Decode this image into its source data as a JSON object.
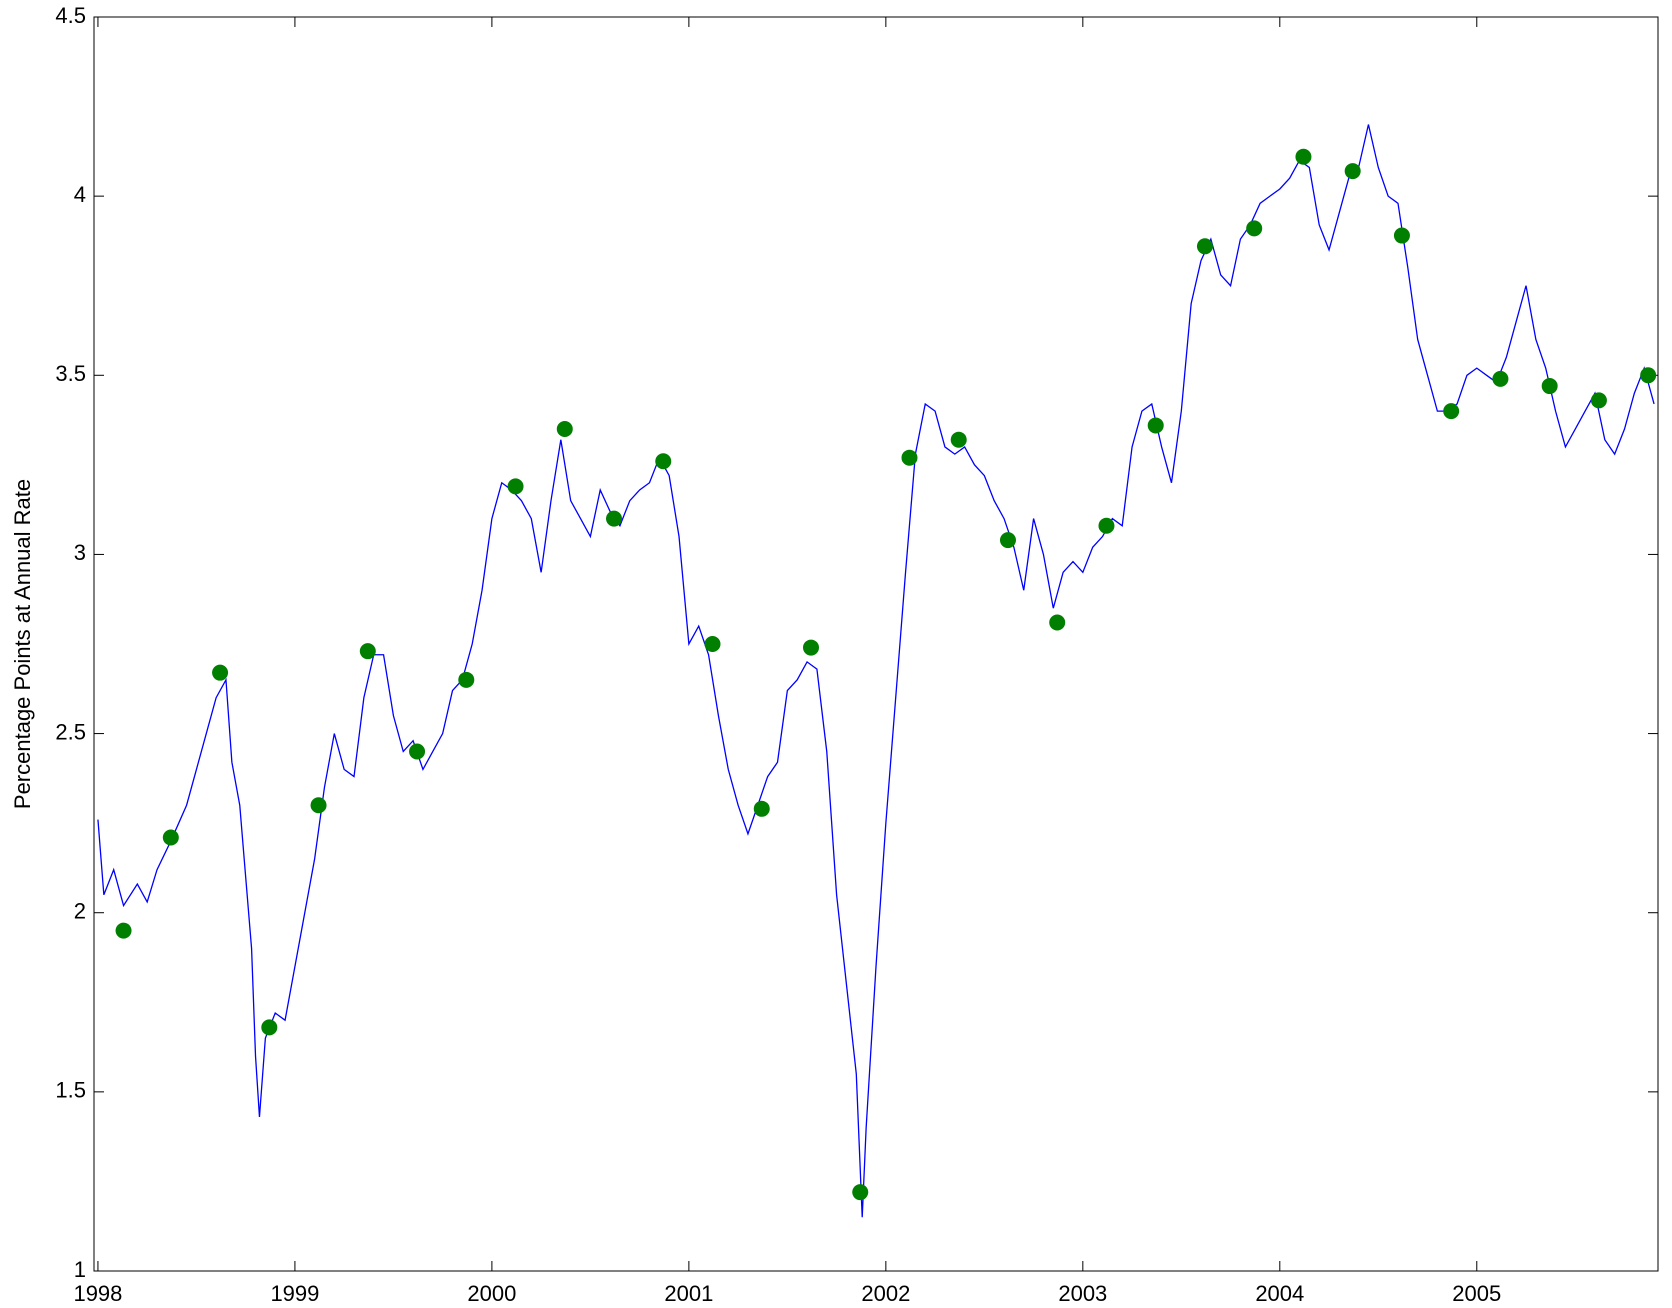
{
  "chart_data": {
    "type": "line",
    "ylabel": "Percentage Points at Annual Rate",
    "xlim": [
      1997.98,
      2005.92
    ],
    "xticks": [
      1998,
      1999,
      2000,
      2001,
      2002,
      2003,
      2004,
      2005
    ],
    "ylim": [
      1,
      4.5
    ],
    "yticks": [
      1,
      1.5,
      2,
      2.5,
      3,
      3.5,
      4,
      4.5
    ],
    "grid": false,
    "series": [
      {
        "type": "line",
        "color": "#0000ff",
        "x": [
          1998.0,
          1998.03,
          1998.08,
          1998.13,
          1998.2,
          1998.25,
          1998.3,
          1998.37,
          1998.45,
          1998.5,
          1998.55,
          1998.6,
          1998.65,
          1998.68,
          1998.72,
          1998.75,
          1998.78,
          1998.8,
          1998.82,
          1998.85,
          1998.9,
          1998.95,
          1999.0,
          1999.05,
          1999.1,
          1999.15,
          1999.2,
          1999.25,
          1999.3,
          1999.35,
          1999.4,
          1999.45,
          1999.5,
          1999.55,
          1999.6,
          1999.65,
          1999.7,
          1999.75,
          1999.8,
          1999.85,
          1999.9,
          1999.95,
          2000.0,
          2000.05,
          2000.1,
          2000.15,
          2000.2,
          2000.25,
          2000.3,
          2000.35,
          2000.4,
          2000.45,
          2000.5,
          2000.55,
          2000.6,
          2000.65,
          2000.7,
          2000.75,
          2000.8,
          2000.85,
          2000.9,
          2000.95,
          2001.0,
          2001.05,
          2001.1,
          2001.15,
          2001.2,
          2001.25,
          2001.3,
          2001.35,
          2001.4,
          2001.45,
          2001.5,
          2001.55,
          2001.6,
          2001.65,
          2001.7,
          2001.75,
          2001.8,
          2001.85,
          2001.88,
          2001.9,
          2001.95,
          2002.0,
          2002.05,
          2002.1,
          2002.15,
          2002.2,
          2002.25,
          2002.3,
          2002.35,
          2002.4,
          2002.45,
          2002.5,
          2002.55,
          2002.6,
          2002.65,
          2002.7,
          2002.75,
          2002.8,
          2002.85,
          2002.9,
          2002.95,
          2003.0,
          2003.05,
          2003.1,
          2003.15,
          2003.2,
          2003.25,
          2003.3,
          2003.35,
          2003.4,
          2003.45,
          2003.5,
          2003.55,
          2003.6,
          2003.65,
          2003.7,
          2003.75,
          2003.8,
          2003.85,
          2003.9,
          2003.95,
          2004.0,
          2004.05,
          2004.1,
          2004.15,
          2004.2,
          2004.25,
          2004.3,
          2004.35,
          2004.4,
          2004.45,
          2004.5,
          2004.55,
          2004.6,
          2004.65,
          2004.7,
          2004.75,
          2004.8,
          2004.85,
          2004.9,
          2004.95,
          2005.0,
          2005.05,
          2005.1,
          2005.15,
          2005.2,
          2005.25,
          2005.3,
          2005.35,
          2005.4,
          2005.45,
          2005.5,
          2005.55,
          2005.6,
          2005.65,
          2005.7,
          2005.75,
          2005.8,
          2005.85,
          2005.9
        ],
        "values": [
          2.26,
          2.05,
          2.12,
          2.02,
          2.08,
          2.03,
          2.12,
          2.2,
          2.3,
          2.4,
          2.5,
          2.6,
          2.65,
          2.42,
          2.3,
          2.1,
          1.9,
          1.6,
          1.43,
          1.65,
          1.72,
          1.7,
          1.85,
          2.0,
          2.15,
          2.35,
          2.5,
          2.4,
          2.38,
          2.6,
          2.72,
          2.72,
          2.55,
          2.45,
          2.48,
          2.4,
          2.45,
          2.5,
          2.62,
          2.65,
          2.75,
          2.9,
          3.1,
          3.2,
          3.18,
          3.15,
          3.1,
          2.95,
          3.15,
          3.32,
          3.15,
          3.1,
          3.05,
          3.18,
          3.12,
          3.08,
          3.15,
          3.18,
          3.2,
          3.27,
          3.22,
          3.05,
          2.75,
          2.8,
          2.72,
          2.55,
          2.4,
          2.3,
          2.22,
          2.3,
          2.38,
          2.42,
          2.62,
          2.65,
          2.7,
          2.68,
          2.45,
          2.05,
          1.8,
          1.55,
          1.15,
          1.4,
          1.85,
          2.25,
          2.6,
          2.95,
          3.28,
          3.42,
          3.4,
          3.3,
          3.28,
          3.3,
          3.25,
          3.22,
          3.15,
          3.1,
          3.02,
          2.9,
          3.1,
          3.0,
          2.85,
          2.95,
          2.98,
          2.95,
          3.02,
          3.05,
          3.1,
          3.08,
          3.3,
          3.4,
          3.42,
          3.3,
          3.2,
          3.4,
          3.7,
          3.82,
          3.88,
          3.78,
          3.75,
          3.88,
          3.92,
          3.98,
          4.0,
          4.02,
          4.05,
          4.1,
          4.08,
          3.92,
          3.85,
          3.95,
          4.05,
          4.08,
          4.2,
          4.08,
          4.0,
          3.98,
          3.8,
          3.6,
          3.5,
          3.4,
          3.4,
          3.42,
          3.5,
          3.52,
          3.5,
          3.48,
          3.55,
          3.65,
          3.75,
          3.6,
          3.52,
          3.4,
          3.3,
          3.35,
          3.4,
          3.45,
          3.32,
          3.28,
          3.35,
          3.45,
          3.52,
          3.42
        ]
      },
      {
        "type": "scatter",
        "color": "#007f00",
        "x": [
          1998.13,
          1998.37,
          1998.62,
          1998.87,
          1999.12,
          1999.37,
          1999.62,
          1999.87,
          2000.12,
          2000.37,
          2000.62,
          2000.87,
          2001.12,
          2001.37,
          2001.62,
          2001.87,
          2002.12,
          2002.37,
          2002.62,
          2002.87,
          2003.12,
          2003.37,
          2003.62,
          2003.87,
          2004.12,
          2004.37,
          2004.62,
          2004.87,
          2005.12,
          2005.37,
          2005.62,
          2005.87
        ],
        "values": [
          1.95,
          2.21,
          2.67,
          1.68,
          2.3,
          2.73,
          2.45,
          2.65,
          3.19,
          3.35,
          3.1,
          3.26,
          2.75,
          2.29,
          2.74,
          1.22,
          3.27,
          3.32,
          3.04,
          2.81,
          3.08,
          3.36,
          3.86,
          3.91,
          4.11,
          4.07,
          3.89,
          3.4,
          3.49,
          3.47,
          3.43,
          3.5
        ]
      }
    ]
  }
}
